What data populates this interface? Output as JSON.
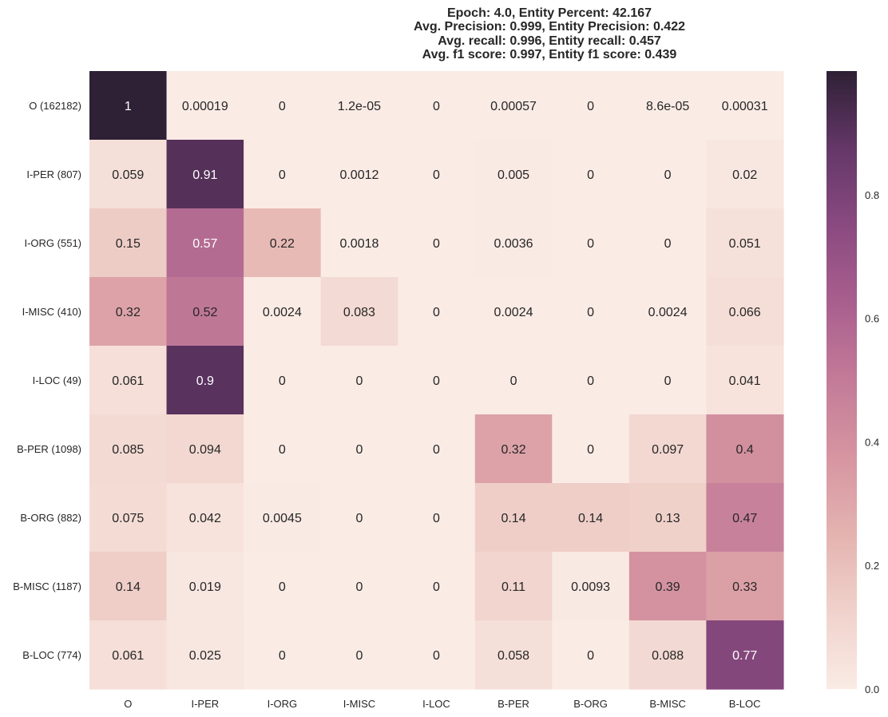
{
  "chart_data": {
    "type": "heatmap",
    "title": [
      "Epoch: 4.0, Entity Percent: 42.167",
      "Avg. Precision: 0.999, Entity Precision: 0.422",
      "Avg. recall: 0.996, Entity recall: 0.457",
      "Avg. f1 score: 0.997, Entity f1 score: 0.439"
    ],
    "row_labels": [
      "O (162182)",
      "I-PER (807)",
      "I-ORG (551)",
      "I-MISC (410)",
      "I-LOC (49)",
      "B-PER (1098)",
      "B-ORG (882)",
      "B-MISC (1187)",
      "B-LOC (774)"
    ],
    "col_labels": [
      "O",
      "I-PER",
      "I-ORG",
      "I-MISC",
      "I-LOC",
      "B-PER",
      "B-ORG",
      "B-MISC",
      "B-LOC"
    ],
    "values": [
      [
        1,
        0.00019,
        0,
        1.2e-05,
        0,
        0.00057,
        0,
        8.6e-05,
        0.00031
      ],
      [
        0.059,
        0.91,
        0,
        0.0012,
        0,
        0.005,
        0,
        0,
        0.02
      ],
      [
        0.15,
        0.57,
        0.22,
        0.0018,
        0,
        0.0036,
        0,
        0,
        0.051
      ],
      [
        0.32,
        0.52,
        0.0024,
        0.083,
        0,
        0.0024,
        0,
        0.0024,
        0.066
      ],
      [
        0.061,
        0.9,
        0,
        0,
        0,
        0,
        0,
        0,
        0.041
      ],
      [
        0.085,
        0.094,
        0,
        0,
        0,
        0.32,
        0,
        0.097,
        0.4
      ],
      [
        0.075,
        0.042,
        0.0045,
        0,
        0,
        0.14,
        0.14,
        0.13,
        0.47
      ],
      [
        0.14,
        0.019,
        0,
        0,
        0,
        0.11,
        0.0093,
        0.39,
        0.33
      ],
      [
        0.061,
        0.025,
        0,
        0,
        0,
        0.058,
        0,
        0.088,
        0.77
      ]
    ],
    "cell_labels": [
      [
        "1",
        "0.00019",
        "0",
        "1.2e-05",
        "0",
        "0.00057",
        "0",
        "8.6e-05",
        "0.00031"
      ],
      [
        "0.059",
        "0.91",
        "0",
        "0.0012",
        "0",
        "0.005",
        "0",
        "0",
        "0.02"
      ],
      [
        "0.15",
        "0.57",
        "0.22",
        "0.0018",
        "0",
        "0.0036",
        "0",
        "0",
        "0.051"
      ],
      [
        "0.32",
        "0.52",
        "0.0024",
        "0.083",
        "0",
        "0.0024",
        "0",
        "0.0024",
        "0.066"
      ],
      [
        "0.061",
        "0.9",
        "0",
        "0",
        "0",
        "0",
        "0",
        "0",
        "0.041"
      ],
      [
        "0.085",
        "0.094",
        "0",
        "0",
        "0",
        "0.32",
        "0",
        "0.097",
        "0.4"
      ],
      [
        "0.075",
        "0.042",
        "0.0045",
        "0",
        "0",
        "0.14",
        "0.14",
        "0.13",
        "0.47"
      ],
      [
        "0.14",
        "0.019",
        "0",
        "0",
        "0",
        "0.11",
        "0.0093",
        "0.39",
        "0.33"
      ],
      [
        "0.061",
        "0.025",
        "0",
        "0",
        "0",
        "0.058",
        "0",
        "0.088",
        "0.77"
      ]
    ],
    "colorbar": {
      "range": [
        0,
        1
      ],
      "ticks": [
        0.0,
        0.2,
        0.4,
        0.6,
        0.8
      ],
      "tick_labels": [
        "0.0",
        "0.2",
        "0.4",
        "0.6",
        "0.8"
      ]
    },
    "colormap": [
      "#faebe5",
      "#f0d2cb",
      "#e4b3b0",
      "#d695a1",
      "#c37b98",
      "#a95f8e",
      "#8a4a80",
      "#643768",
      "#2e2035"
    ],
    "grid": false,
    "legend": "right"
  }
}
